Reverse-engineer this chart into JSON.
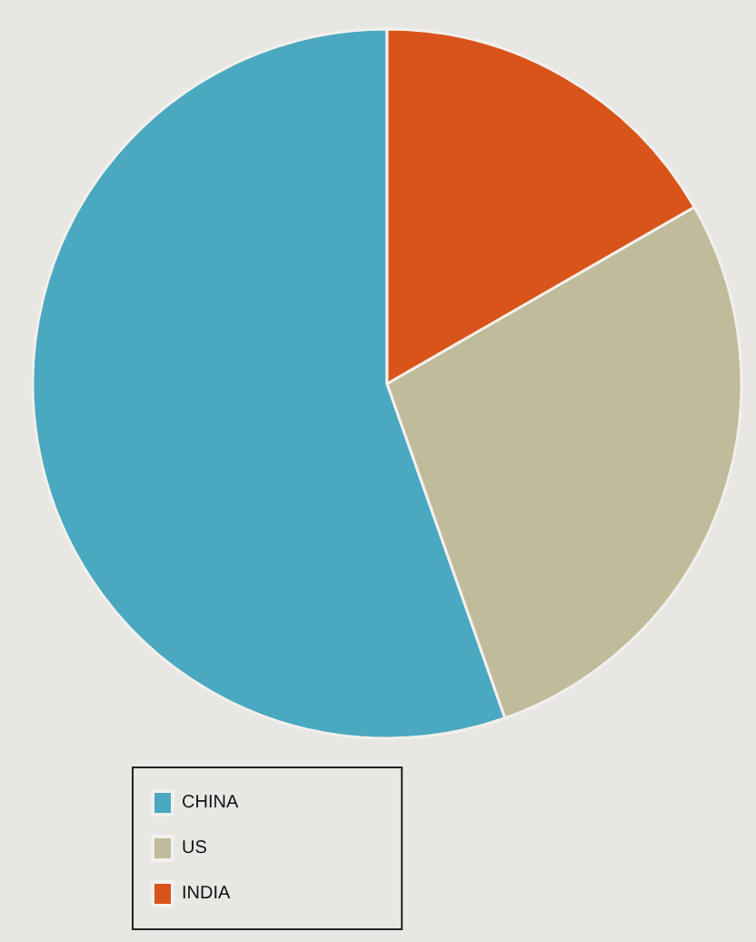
{
  "chart_data": {
    "type": "pie",
    "categories": [
      "CHINA",
      "US",
      "INDIA"
    ],
    "values": [
      55.4,
      27.9,
      16.7
    ],
    "colors": [
      "#4aa8c0",
      "#bfbb9b",
      "#d9541a"
    ],
    "legend": "bottom left"
  }
}
